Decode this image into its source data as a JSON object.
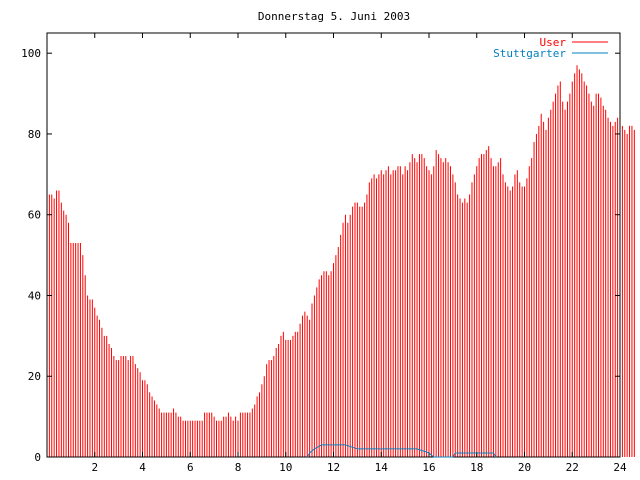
{
  "chart_data": {
    "type": "bar",
    "title": "Donnerstag 5. Juni 2003",
    "xlabel": "",
    "ylabel": "",
    "xlim": [
      0,
      24
    ],
    "ylim": [
      0,
      105
    ],
    "x_ticks": [
      2,
      4,
      6,
      8,
      10,
      12,
      14,
      16,
      18,
      20,
      22,
      24
    ],
    "y_ticks": [
      0,
      20,
      40,
      60,
      80,
      100
    ],
    "grid": false,
    "legend_position": "top-right",
    "series": [
      {
        "name": "User",
        "color": "#ff0000",
        "style": "impulses",
        "x_start": 0,
        "x_step": 0.1,
        "values": [
          69,
          65,
          65,
          64,
          66,
          66,
          63,
          61,
          60,
          58,
          53,
          53,
          53,
          53,
          53,
          50,
          45,
          40,
          39,
          39,
          37,
          35,
          34,
          32,
          30,
          30,
          28,
          27,
          25,
          24,
          24,
          25,
          25,
          25,
          24,
          25,
          25,
          23,
          22,
          21,
          19,
          19,
          18,
          16,
          15,
          14,
          13,
          12,
          11,
          11,
          11,
          11,
          11,
          12,
          11,
          10,
          10,
          9,
          9,
          9,
          9,
          9,
          9,
          9,
          9,
          9,
          11,
          11,
          11,
          11,
          10,
          9,
          9,
          9,
          10,
          10,
          11,
          10,
          9,
          10,
          9,
          11,
          11,
          11,
          11,
          11,
          12,
          13,
          15,
          16,
          18,
          20,
          23,
          24,
          24,
          25,
          27,
          28,
          30,
          31,
          29,
          29,
          29,
          30,
          31,
          31,
          33,
          35,
          36,
          35,
          34,
          38,
          40,
          42,
          44,
          45,
          46,
          46,
          45,
          46,
          48,
          50,
          52,
          55,
          58,
          60,
          58,
          60,
          62,
          63,
          63,
          62,
          62,
          63,
          65,
          68,
          69,
          70,
          69,
          70,
          71,
          70,
          71,
          72,
          70,
          71,
          71,
          72,
          72,
          70,
          72,
          71,
          73,
          75,
          74,
          73,
          75,
          75,
          74,
          72,
          71,
          70,
          72,
          76,
          75,
          74,
          73,
          74,
          73,
          72,
          70,
          68,
          65,
          64,
          63,
          64,
          63,
          65,
          68,
          70,
          72,
          74,
          75,
          75,
          76,
          77,
          74,
          72,
          72,
          73,
          74,
          70,
          68,
          67,
          66,
          67,
          70,
          71,
          68,
          67,
          67,
          69,
          72,
          74,
          78,
          80,
          82,
          85,
          83,
          81,
          84,
          86,
          88,
          90,
          92,
          93,
          88,
          86,
          88,
          90,
          93,
          95,
          97,
          96,
          95,
          93,
          92,
          90,
          88,
          87,
          90,
          90,
          89,
          87,
          86,
          84,
          83,
          82,
          83,
          84,
          83,
          82,
          81,
          80,
          82,
          82,
          81
        ]
      },
      {
        "name": "Stuttgarter",
        "color": "#0080c0",
        "style": "line",
        "points": [
          [
            10.9,
            0
          ],
          [
            11.0,
            1
          ],
          [
            11.2,
            2
          ],
          [
            11.5,
            3
          ],
          [
            12.5,
            3
          ],
          [
            13.0,
            2
          ],
          [
            15.5,
            2
          ],
          [
            16.0,
            1
          ],
          [
            16.2,
            0
          ],
          [
            17.0,
            0
          ],
          [
            17.1,
            1
          ],
          [
            18.7,
            1
          ],
          [
            18.8,
            0
          ]
        ]
      }
    ]
  }
}
